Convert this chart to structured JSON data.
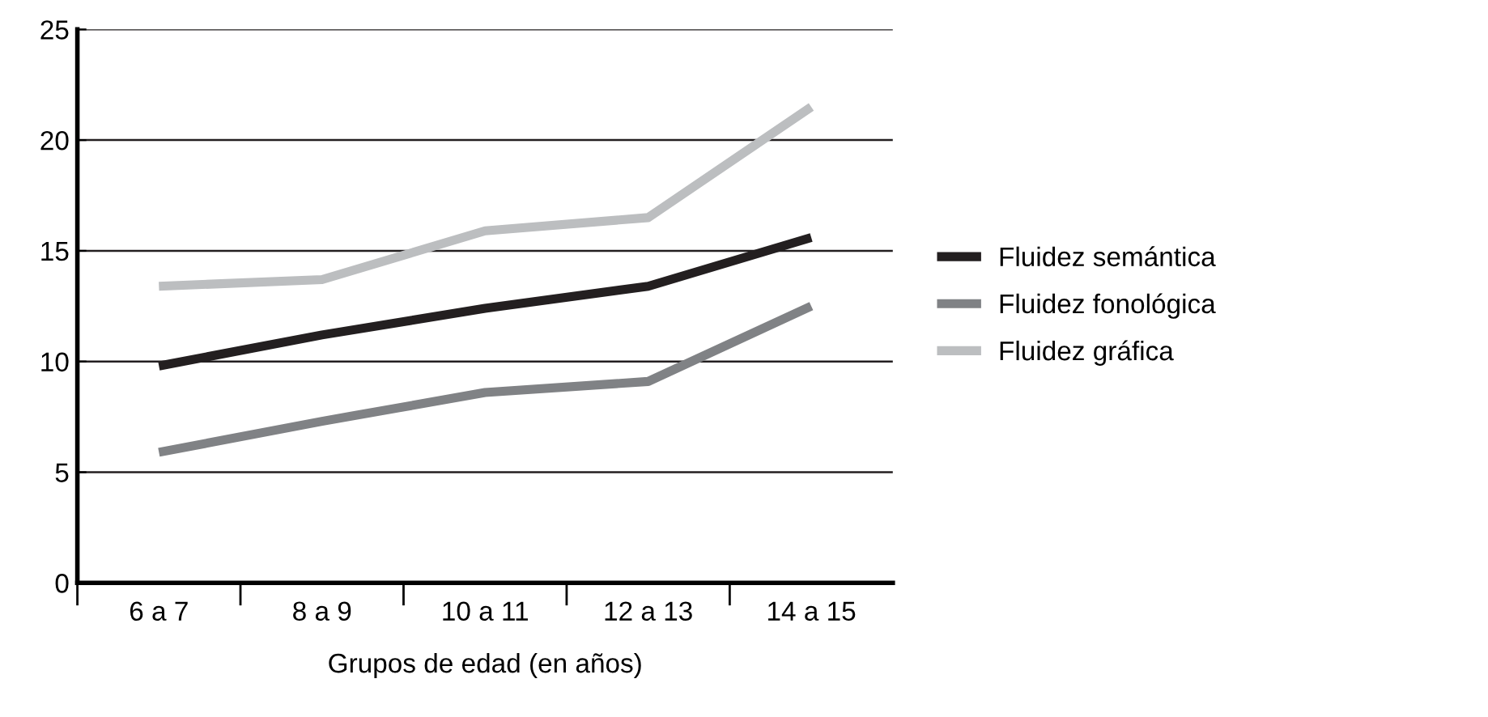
{
  "chart_data": {
    "type": "line",
    "xlabel": "Grupos de edad (en años)",
    "categories": [
      "6 a 7",
      "8 a 9",
      "10 a 11",
      "12 a 13",
      "14 a 15"
    ],
    "series": [
      {
        "name": "Fluidez semántica",
        "color": "#231f20",
        "values": [
          9.8,
          11.2,
          12.4,
          13.4,
          15.6
        ]
      },
      {
        "name": "Fluidez fonológica",
        "color": "#808285",
        "values": [
          5.9,
          7.3,
          8.6,
          9.1,
          12.5
        ]
      },
      {
        "name": "Fluidez gráfica",
        "color": "#bcbec0",
        "values": [
          13.4,
          13.7,
          15.9,
          16.5,
          21.5
        ]
      }
    ],
    "ylim": [
      0,
      25
    ],
    "yticks": [
      0,
      5,
      10,
      15,
      20,
      25
    ],
    "grid": "y",
    "legend": "right",
    "marker": "none",
    "line_style": "solid"
  }
}
